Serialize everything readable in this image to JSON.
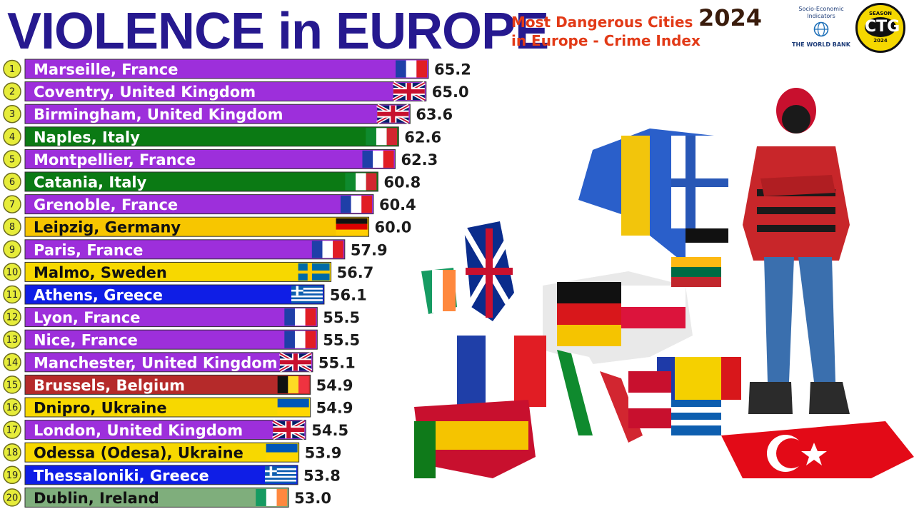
{
  "header": {
    "title": "VIOLENCE in EUROPE",
    "subtitle_line1": "Most Dangerous Cities",
    "subtitle_line2": "in Europe - Crime Index",
    "year": "2024"
  },
  "logos": {
    "worldbank_line1": "Socio-Economic",
    "worldbank_line2": "Indicators",
    "worldbank_name": "THE WORLD BANK",
    "channel_season": "SEASON",
    "channel_logo": "CTG",
    "channel_year": "2024"
  },
  "chart_data": {
    "type": "bar",
    "orientation": "horizontal",
    "title": "Most Dangerous Cities in Europe - Crime Index",
    "categories": [
      "Marseille, France",
      "Coventry, United Kingdom",
      "Birmingham, United Kingdom",
      "Naples, Italy",
      "Montpellier, France",
      "Catania, Italy",
      "Grenoble, France",
      "Leipzig, Germany",
      "Paris, France",
      "Malmo, Sweden",
      "Athens, Greece",
      "Lyon, France",
      "Nice, France",
      "Manchester, United Kingdom",
      "Brussels, Belgium",
      "Dnipro, Ukraine",
      "London, United Kingdom",
      "Odessa (Odesa), Ukraine",
      "Thessaloniki, Greece",
      "Dublin, Ireland"
    ],
    "values": [
      65.2,
      65.0,
      63.6,
      62.6,
      62.3,
      60.8,
      60.4,
      60.0,
      57.9,
      56.7,
      56.1,
      55.5,
      55.5,
      55.1,
      54.9,
      54.9,
      54.5,
      53.9,
      53.8,
      53.0
    ],
    "value_labels": [
      "65.2",
      "65.0",
      "63.6",
      "62.6",
      "62.3",
      "60.8",
      "60.4",
      "60.0",
      "57.9",
      "56.7",
      "56.1",
      "55.5",
      "55.5",
      "55.1",
      "54.9",
      "54.9",
      "54.5",
      "53.9",
      "53.8",
      "53.0"
    ],
    "ranks": [
      "1",
      "2",
      "3",
      "4",
      "5",
      "6",
      "7",
      "8",
      "9",
      "10",
      "11",
      "12",
      "13",
      "14",
      "15",
      "16",
      "17",
      "18",
      "19",
      "20"
    ],
    "bar_colors": [
      "#9d2fdb",
      "#9d2fdb",
      "#9d2fdb",
      "#0b7a14",
      "#9d2fdb",
      "#0b7a14",
      "#9d2fdb",
      "#f7c600",
      "#9d2fdb",
      "#f7d800",
      "#0f1ee6",
      "#9d2fdb",
      "#9d2fdb",
      "#9d2fdb",
      "#b52a2a",
      "#f7d800",
      "#9d2fdb",
      "#f7d800",
      "#0f1ee6",
      "#7fae7c"
    ],
    "label_colors": [
      "#ffffff",
      "#ffffff",
      "#ffffff",
      "#ffffff",
      "#ffffff",
      "#ffffff",
      "#ffffff",
      "#111111",
      "#ffffff",
      "#111111",
      "#ffffff",
      "#ffffff",
      "#ffffff",
      "#ffffff",
      "#ffffff",
      "#111111",
      "#ffffff",
      "#111111",
      "#ffffff",
      "#111111"
    ],
    "flags": [
      "france",
      "uk",
      "uk",
      "italy",
      "france",
      "italy",
      "france",
      "germany",
      "france",
      "sweden",
      "greece",
      "france",
      "france",
      "uk",
      "belgium",
      "ukraine",
      "uk",
      "ukraine",
      "greece",
      "ireland"
    ],
    "xlim": [
      30,
      65.2
    ],
    "grid": false,
    "legend": "none"
  }
}
